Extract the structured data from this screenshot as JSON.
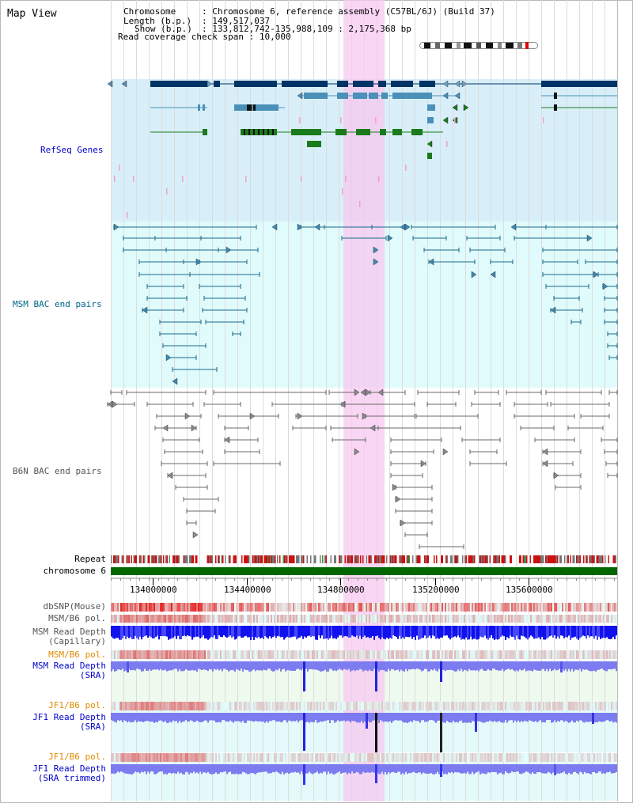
{
  "view": {
    "title": "Map View",
    "info": {
      "chromosome_key": "Chromosome",
      "chromosome_val": "Chromosome 6, reference assembly (C57BL/6J) (Build 37)",
      "length_key": "Length (b.p.)",
      "length_val": "149,517,037",
      "show_key": "Show (b.p.)",
      "show_val": "133,812,742-135,988,109 : 2,175,368 bp",
      "coverage_key": "Read coverage check span",
      "coverage_val": "10,000"
    }
  },
  "tracks": {
    "refseq": "RefSeq Genes",
    "msm_bac": "MSM BAC end pairs",
    "b6n_bac": "B6N BAC end pairs",
    "repeat": "Repeat",
    "chromosome": "chromosome 6",
    "dbsnp": "dbSNP(Mouse)",
    "msm_b6_pol_1": "MSM/B6 pol.",
    "msm_read_depth_cap_1": "MSM Read Depth",
    "msm_read_depth_cap_2": "(Capillary)",
    "msm_b6_pol_2": "MSM/B6 pol.",
    "msm_read_depth_sra_1": "MSM Read Depth",
    "msm_read_depth_sra_2": "(SRA)",
    "jf1_b6_pol_1": "JF1/B6 pol.",
    "jf1_read_depth_sra_1": "JF1 Read Depth",
    "jf1_read_depth_sra_2": "(SRA)",
    "jf1_b6_pol_2": "JF1/B6 pol.",
    "jf1_read_depth_trim_1": "JF1 Read Depth",
    "jf1_read_depth_trim_2": "(SRA trimmed)"
  },
  "axis": {
    "ticks": [
      "134000000",
      "134400000",
      "134800000",
      "135200000",
      "135600000"
    ]
  },
  "colors": {
    "refseq_bg": "#d8eff9",
    "msm_bg": "#e0fbfb",
    "highlight": "#f7c8ef",
    "navy": "#003366",
    "steel": "#4a90b8",
    "green": "#1b7a1b",
    "teal": "#17698e",
    "gray": "#6a6a6a",
    "chrom": "#006600",
    "label_blue": "#0000cc",
    "label_orange": "#e08a00",
    "label_teal": "#006688"
  }
}
